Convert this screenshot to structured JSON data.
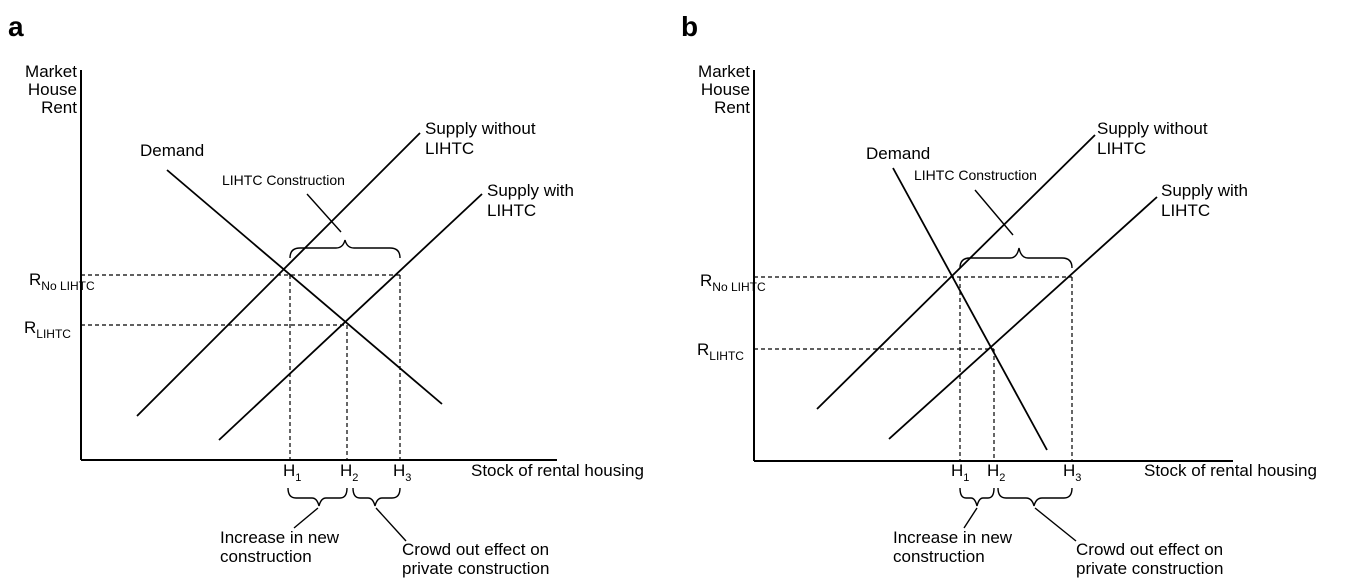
{
  "panels": [
    {
      "letter": "a",
      "y_axis_label": [
        "Market",
        "House",
        "Rent"
      ],
      "x_axis_label": "Stock of rental housing",
      "demand_label": "Demand",
      "supply_without_label": [
        "Supply without",
        "LIHTC"
      ],
      "supply_with_label": [
        "Supply with",
        "LIHTC"
      ],
      "construction_label": "LIHTC Construction",
      "rent_no": {
        "main": "R",
        "sub": "No LIHTC"
      },
      "rent_lihtc": {
        "main": "R",
        "sub": "LIHTC"
      },
      "h_ticks": [
        {
          "main": "H",
          "sub": "1"
        },
        {
          "main": "H",
          "sub": "2"
        },
        {
          "main": "H",
          "sub": "3"
        }
      ],
      "increase_label": [
        "Increase in new",
        "construction"
      ],
      "crowd_label": [
        "Crowd out effect on",
        "private construction"
      ]
    },
    {
      "letter": "b",
      "y_axis_label": [
        "Market",
        "House",
        "Rent"
      ],
      "x_axis_label": "Stock of rental housing",
      "demand_label": "Demand",
      "supply_without_label": [
        "Supply without",
        "LIHTC"
      ],
      "supply_with_label": [
        "Supply with",
        "LIHTC"
      ],
      "construction_label": "LIHTC Construction",
      "rent_no": {
        "main": "R",
        "sub": "No LIHTC"
      },
      "rent_lihtc": {
        "main": "R",
        "sub": "LIHTC"
      },
      "h_ticks": [
        {
          "main": "H",
          "sub": "1"
        },
        {
          "main": "H",
          "sub": "2"
        },
        {
          "main": "H",
          "sub": "3"
        }
      ],
      "increase_label": [
        "Increase in new",
        "construction"
      ],
      "crowd_label": [
        "Crowd out effect on",
        "private construction"
      ]
    }
  ]
}
